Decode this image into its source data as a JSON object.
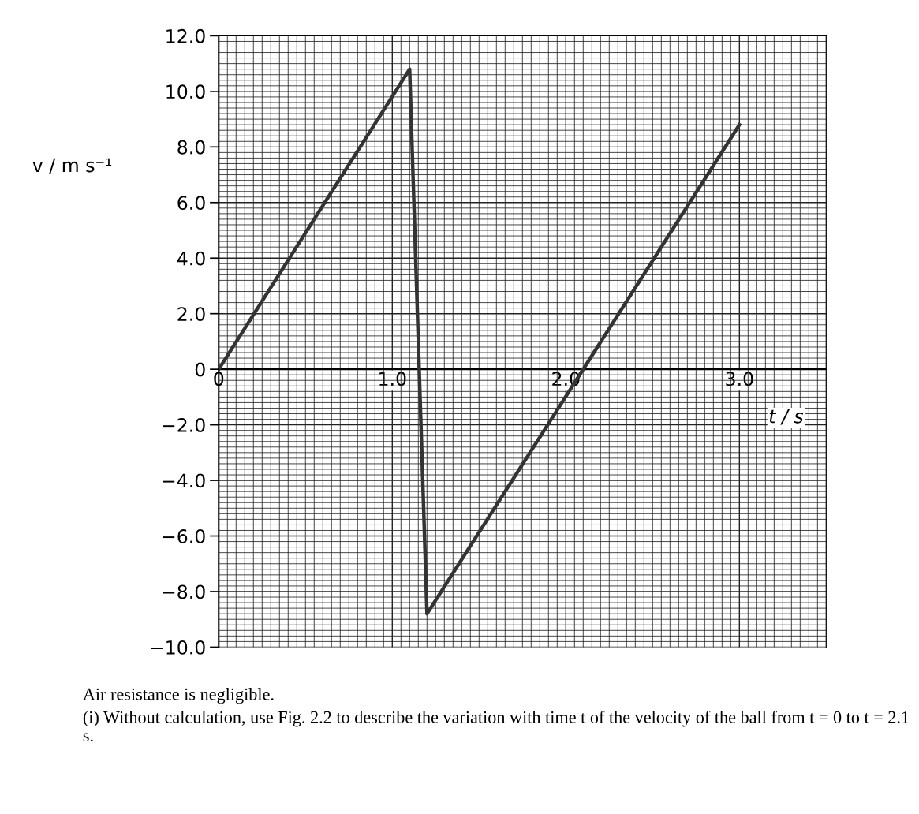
{
  "chart_data": {
    "type": "line",
    "xlabel": "t / s",
    "ylabel": "v / m s⁻¹",
    "x": [
      0,
      1.1,
      1.2,
      3.0
    ],
    "series": [
      {
        "color": "#333333",
        "values": [
          0,
          10.8,
          -8.8,
          8.8
        ]
      }
    ],
    "xlim": [
      0,
      3.5
    ],
    "xticks": [
      0,
      {
        "value": 1.0,
        "label": "1.0"
      },
      {
        "value": 2.0,
        "label": "2.0"
      },
      {
        "value": 3.0,
        "label": "3.0"
      }
    ],
    "ylim": [
      -10,
      12
    ],
    "yticks": [
      {
        "value": -10,
        "label": "−10.0"
      },
      {
        "value": -8,
        "label": "−8.0"
      },
      {
        "value": -6,
        "label": "−6.0"
      },
      {
        "value": -4,
        "label": "−4.0"
      },
      {
        "value": -2,
        "label": "−2.0"
      },
      0,
      {
        "value": 2,
        "label": "2.0"
      },
      {
        "value": 4,
        "label": "4.0"
      },
      {
        "value": 6,
        "label": "6.0"
      },
      {
        "value": 8,
        "label": "8.0"
      },
      {
        "value": 10,
        "label": "10.0"
      },
      {
        "value": 12,
        "label": "12.0"
      }
    ],
    "grid": true,
    "marker": "none",
    "line_style": "solid",
    "annotations": [
      "Air resistance is negligible.",
      "(i) Without calculation, use Fig. 2.2 to describe the variation with time t of the velocity of the ball from t = 0 to t = 2.1 s."
    ]
  }
}
